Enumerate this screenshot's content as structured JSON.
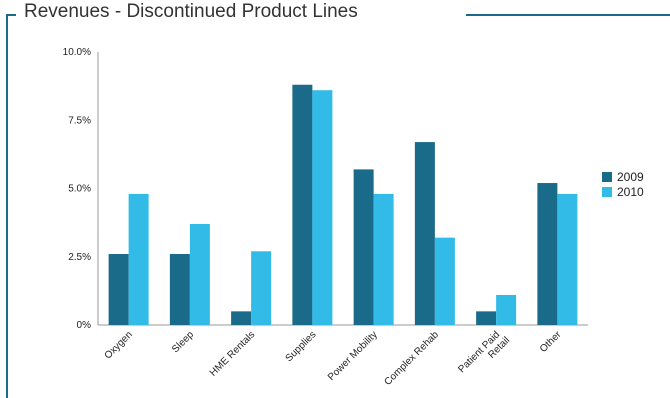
{
  "chart_data": {
    "type": "bar",
    "title": "Revenues - Discontinued Product Lines",
    "categories": [
      "Oxygen",
      "Sleep",
      "HME Rentals",
      "Supplies",
      "Power Mobility",
      "Complex Rehab",
      "Patient Paid Retail",
      "Other"
    ],
    "series": [
      {
        "name": "2009",
        "color": "#1a6a8a",
        "values": [
          2.6,
          2.6,
          0.5,
          8.8,
          5.7,
          6.7,
          0.5,
          5.2
        ]
      },
      {
        "name": "2010",
        "color": "#33bbe8",
        "values": [
          4.8,
          3.7,
          2.7,
          8.6,
          4.8,
          3.2,
          1.1,
          4.8
        ]
      }
    ],
    "ylim": [
      0,
      10
    ],
    "yticks": [
      "0%",
      "2.5%",
      "5.0%",
      "7.5%",
      "10.0%"
    ],
    "ytick_values": [
      0,
      2.5,
      5,
      7.5,
      10
    ],
    "legend_position": "right",
    "xlabel": "",
    "ylabel": ""
  }
}
